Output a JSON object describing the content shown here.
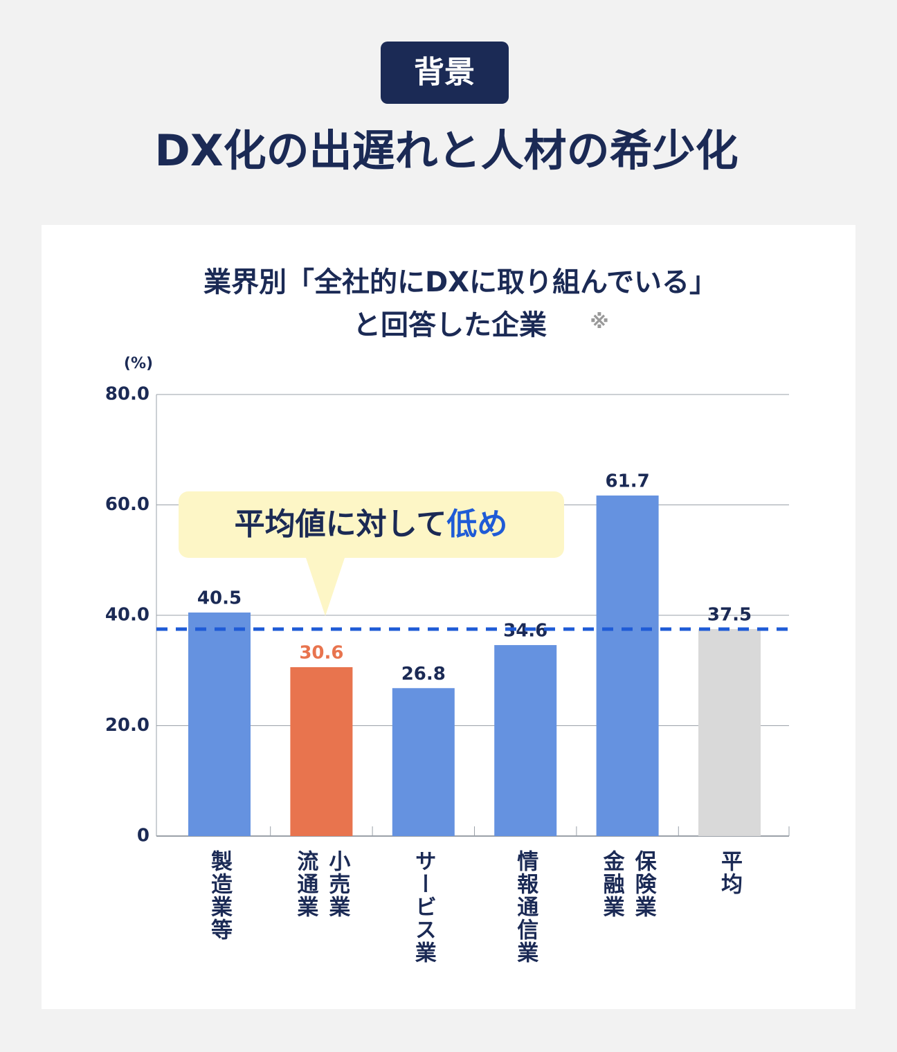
{
  "header": {
    "badge": "背景",
    "title": "DX化の出遅れと人材の希少化"
  },
  "chart_data": {
    "type": "bar",
    "title_lines": [
      "業界別「全社的にDXに取り組んでいる」",
      "と回答した企業"
    ],
    "title_note": "※",
    "y_unit": "(%)",
    "categories": [
      "製造業等",
      "小売業 流通業",
      "サービス業",
      "情報通信業",
      "保険業 金融業",
      "平均"
    ],
    "values": [
      40.5,
      30.6,
      26.8,
      34.6,
      61.7,
      37.5
    ],
    "colors": [
      "#6592e0",
      "#e8744e",
      "#6592e0",
      "#6592e0",
      "#6592e0",
      "#d9d9d9"
    ],
    "value_label_colors": [
      "#1b2a55",
      "#e8744e",
      "#1b2a55",
      "#1b2a55",
      "#1b2a55",
      "#1b2a55"
    ],
    "ylim": [
      0,
      80
    ],
    "yticks": [
      0,
      {
        "value": 20,
        "label": "20.0"
      },
      {
        "value": 40,
        "label": "40.0"
      },
      {
        "value": 60,
        "label": "60.0"
      },
      {
        "value": 80,
        "label": "80.0"
      }
    ],
    "grid": true,
    "reference_line": {
      "value": 37.5,
      "color": "#1f5bd6"
    },
    "annotation": {
      "text": "平均値に対して",
      "highlight": "低め"
    }
  }
}
